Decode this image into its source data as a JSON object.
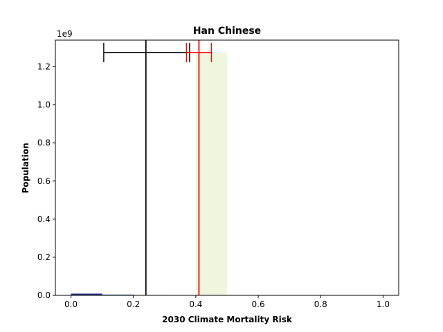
{
  "chart_data": {
    "type": "bar",
    "title": "Han Chinese",
    "xlabel": "2030 Climate Mortality Risk",
    "ylabel": "Population",
    "y_scale_label": "1e9",
    "xlim": [
      -0.05,
      1.05
    ],
    "ylim": [
      0,
      1.34
    ],
    "x_ticks": [
      0.0,
      0.2,
      0.4,
      0.6,
      0.8,
      1.0
    ],
    "x_tick_labels": [
      "0.0",
      "0.2",
      "0.4",
      "0.6",
      "0.8",
      "1.0"
    ],
    "y_ticks": [
      0.0,
      0.2,
      0.4,
      0.6,
      0.8,
      1.0,
      1.2
    ],
    "y_tick_labels": [
      "0.0",
      "0.2",
      "0.4",
      "0.6",
      "0.8",
      "1.0",
      "1.2"
    ],
    "grid": false,
    "bars": [
      {
        "x0": 0.0,
        "x1": 0.1,
        "value": 0.009,
        "color": "#232d7e"
      },
      {
        "x0": 0.1,
        "x1": 0.2,
        "value": 0.004,
        "color": "#2a5f8e"
      },
      {
        "x0": 0.2,
        "x1": 0.3,
        "value": 0.002,
        "color": "#3a7aa0"
      },
      {
        "x0": 0.4,
        "x1": 0.5,
        "value": 1.275,
        "color": "#eef7de"
      }
    ],
    "markers": [
      {
        "name": "black",
        "color": "#000000",
        "x": 0.24,
        "err_low": 0.105,
        "err_high": 0.38,
        "y": 1.275
      },
      {
        "name": "red",
        "color": "#ff0000",
        "x": 0.41,
        "err_low": 0.37,
        "err_high": 0.45,
        "y": 1.275
      }
    ]
  }
}
